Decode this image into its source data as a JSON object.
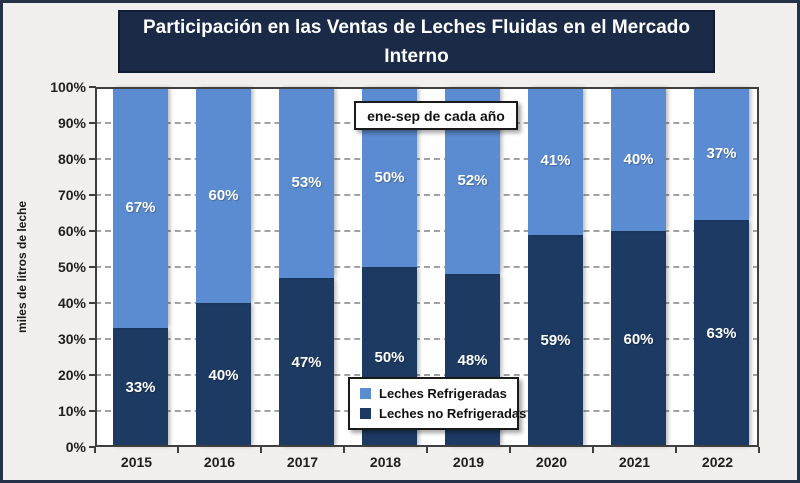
{
  "title": {
    "line1": "Participación en las Ventas de Leches Fluidas en el Mercado",
    "line2": "Interno",
    "full": "Participación en las Ventas de Leches Fluidas en el Mercado Interno"
  },
  "annotation": "ene-sep de cada año",
  "legend": {
    "items": [
      {
        "label": "Leches Refrigeradas",
        "color": "#5b8bd0"
      },
      {
        "label": "Leches no Refrigeradas",
        "color": "#1d3a63"
      }
    ]
  },
  "colors": {
    "refrigeradas": "#5b8bd0",
    "no_refrigeradas": "#1d3a63",
    "title_background": "#1b2a47",
    "page_background": "#f0efed",
    "outer_border": "#243149",
    "gridline": "#a2a2a2"
  },
  "chart_data": {
    "type": "bar",
    "stacked": true,
    "title": "Participación en las Ventas de Leches Fluidas en el Mercado Interno",
    "annotation": "ene-sep de cada año",
    "xlabel": "",
    "ylabel": "miles de litros de leche",
    "unit": "%",
    "categories": [
      "2015",
      "2016",
      "2017",
      "2018",
      "2019",
      "2020",
      "2021",
      "2022"
    ],
    "series": [
      {
        "name": "Leches no Refrigeradas",
        "color": "#1d3a63",
        "values": [
          33,
          40,
          47,
          50,
          48,
          59,
          60,
          63
        ]
      },
      {
        "name": "Leches Refrigeradas",
        "color": "#5b8bd0",
        "values": [
          67,
          60,
          53,
          50,
          52,
          41,
          40,
          37
        ]
      }
    ],
    "ylim": [
      0,
      100
    ],
    "y_tick_labels": [
      "0%",
      "10%",
      "20%",
      "30%",
      "40%",
      "50%",
      "60%",
      "70%",
      "80%",
      "90%",
      "100%"
    ],
    "grid": "horizontal-dashed",
    "legend_position": "inside-bottom-center",
    "data_labels": "inside-center"
  }
}
